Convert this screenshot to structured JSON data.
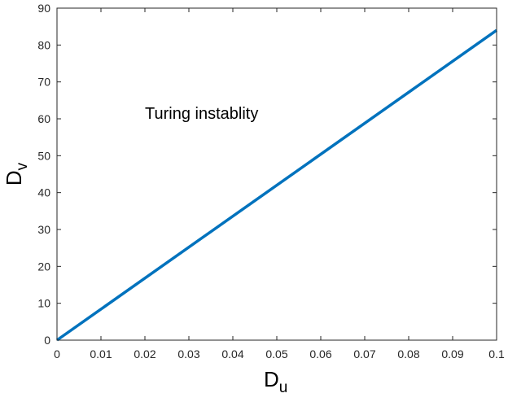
{
  "chart_data": {
    "type": "line",
    "title": "",
    "xlabel": "D",
    "xlabel_subscript": "u",
    "ylabel": "D",
    "ylabel_subscript": "v",
    "xlim": [
      0,
      0.1
    ],
    "ylim": [
      0,
      90
    ],
    "x_ticks": [
      0,
      0.01,
      0.02,
      0.03,
      0.04,
      0.05,
      0.06,
      0.07,
      0.08,
      0.09,
      0.1
    ],
    "x_tick_labels": [
      "0",
      "0.01",
      "0.02",
      "0.03",
      "0.04",
      "0.05",
      "0.06",
      "0.07",
      "0.08",
      "0.09",
      "0.1"
    ],
    "y_ticks": [
      0,
      10,
      20,
      30,
      40,
      50,
      60,
      70,
      80,
      90
    ],
    "y_tick_labels": [
      "0",
      "10",
      "20",
      "30",
      "40",
      "50",
      "60",
      "70",
      "80",
      "90"
    ],
    "grid": false,
    "series": [
      {
        "x": [
          0,
          0.1
        ],
        "y": [
          0,
          84
        ],
        "color": "#0072BD"
      }
    ],
    "annotations": [
      {
        "text": "Turing instablity",
        "x": 0.02,
        "y": 60
      }
    ]
  }
}
